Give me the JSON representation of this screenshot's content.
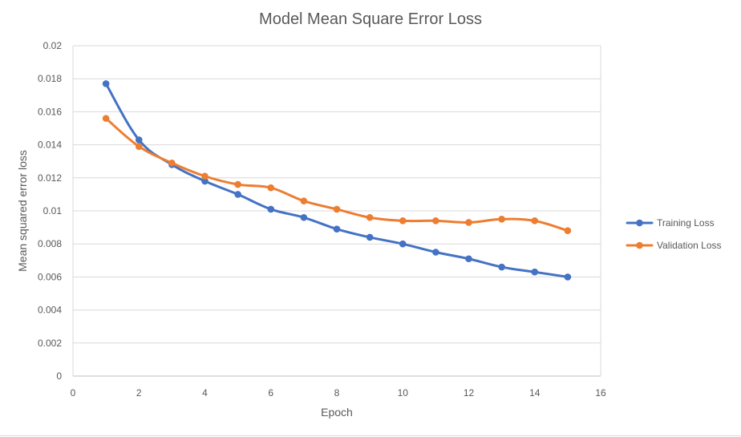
{
  "chart_data": {
    "type": "line",
    "title": "Model Mean Square Error Loss",
    "xlabel": "Epoch",
    "ylabel": "Mean squared error loss",
    "xlim": [
      0,
      16
    ],
    "ylim": [
      0,
      0.02
    ],
    "x_ticks": [
      "0",
      "2",
      "4",
      "6",
      "8",
      "10",
      "12",
      "14",
      "16"
    ],
    "y_ticks": [
      "0",
      "0.002",
      "0.004",
      "0.006",
      "0.008",
      "0.01",
      "0.012",
      "0.014",
      "0.016",
      "0.018",
      "0.02"
    ],
    "grid": "horizontal",
    "legend_position": "right",
    "x": [
      1,
      2,
      3,
      4,
      5,
      6,
      7,
      8,
      9,
      10,
      11,
      12,
      13,
      14,
      15
    ],
    "series": [
      {
        "name": "Training Loss",
        "color": "#4472C4",
        "values": [
          0.0177,
          0.0143,
          0.0128,
          0.0118,
          0.011,
          0.0101,
          0.0096,
          0.0089,
          0.0084,
          0.008,
          0.0075,
          0.0071,
          0.0066,
          0.0063,
          0.006
        ]
      },
      {
        "name": "Validation Loss",
        "color": "#ED7D31",
        "values": [
          0.0156,
          0.0139,
          0.0129,
          0.0121,
          0.0116,
          0.0114,
          0.0106,
          0.0101,
          0.0096,
          0.0094,
          0.0094,
          0.0093,
          0.0095,
          0.0094,
          0.0088
        ]
      }
    ]
  }
}
